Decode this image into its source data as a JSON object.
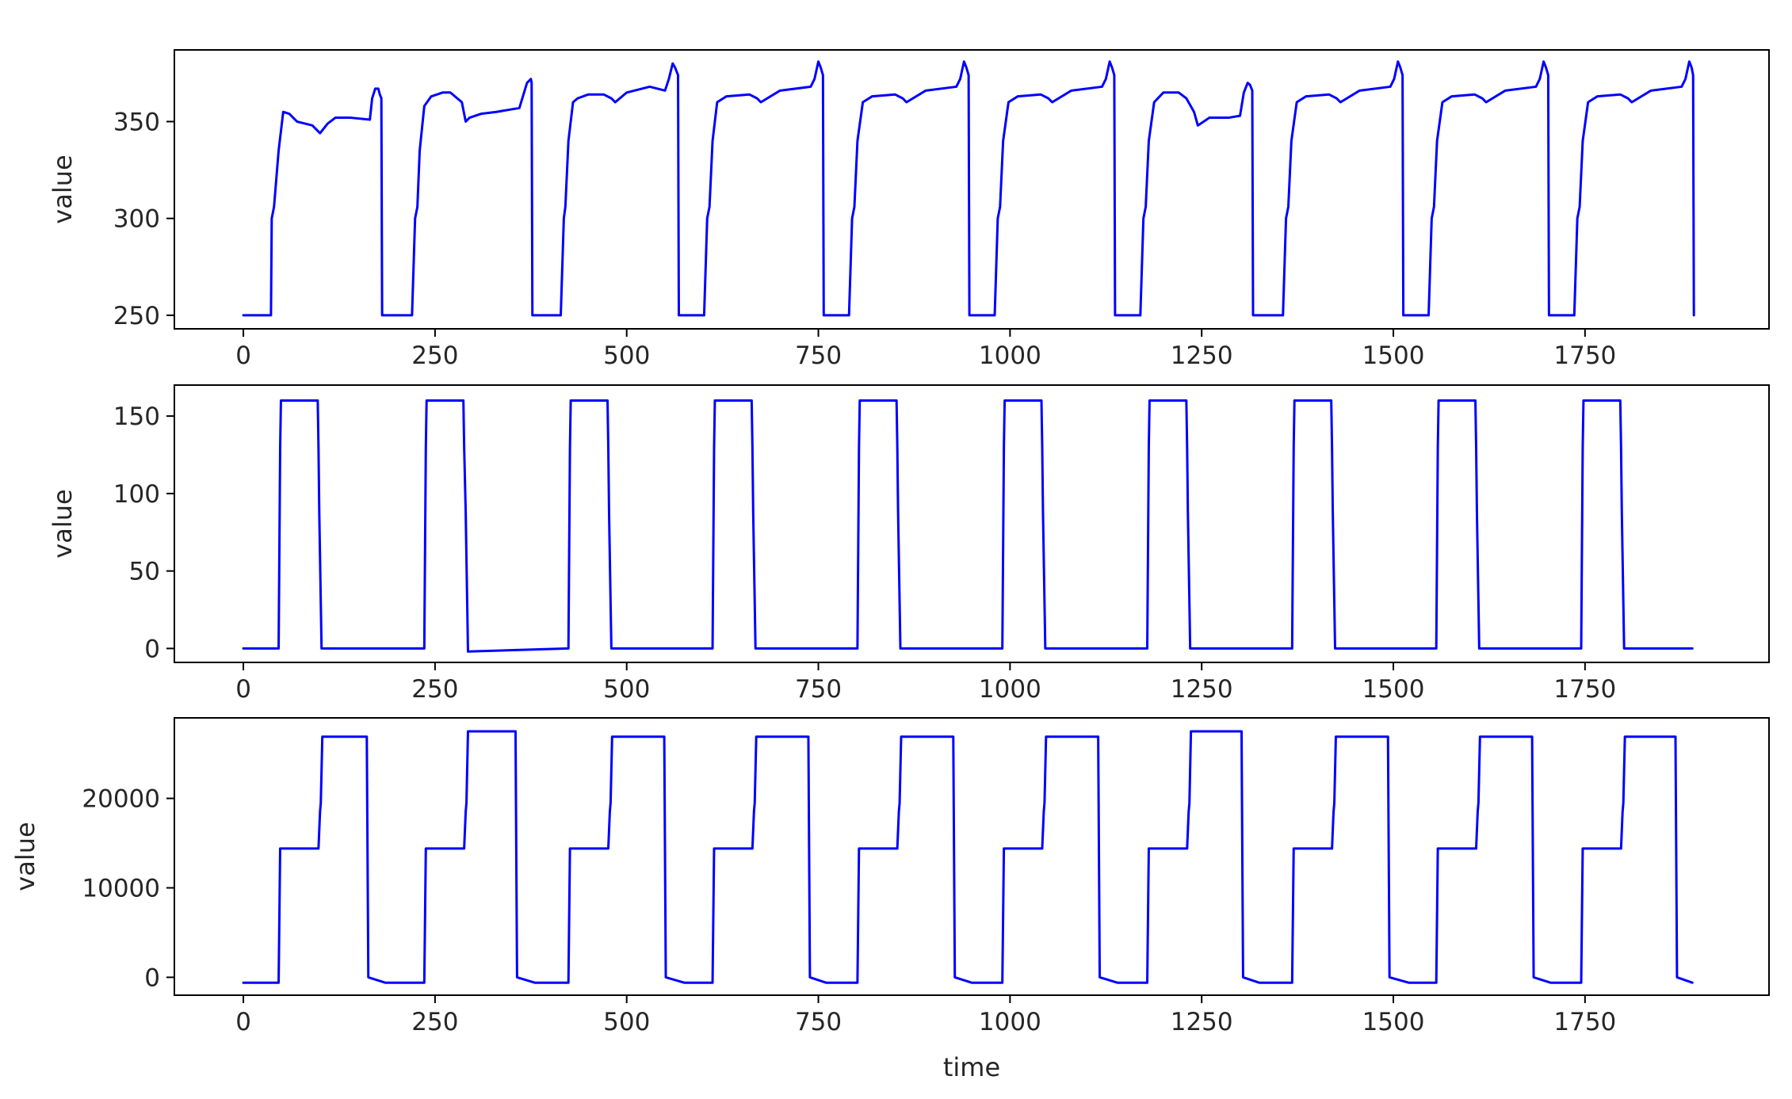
{
  "chart_data": [
    {
      "type": "line",
      "title": "",
      "xlabel": "",
      "ylabel": "value",
      "xlim": [
        -90,
        1990
      ],
      "ylim": [
        243,
        387
      ],
      "xticks": [
        0,
        250,
        500,
        750,
        1000,
        1250,
        1500,
        1750
      ],
      "yticks": [
        250,
        300,
        350
      ],
      "grid": false,
      "color": "#0000ff",
      "series": [
        {
          "x": [
            0,
            36,
            37,
            40,
            46,
            52,
            60,
            70,
            90,
            100,
            110,
            120,
            140,
            165,
            168,
            172,
            176,
            178,
            180,
            181,
            220,
            224,
            227,
            230,
            236,
            245,
            260,
            270,
            285,
            290,
            295,
            310,
            330,
            360,
            370,
            375,
            376,
            377,
            380,
            414,
            418,
            420,
            424,
            430,
            436,
            450,
            470,
            480,
            485,
            500,
            530,
            550,
            555,
            560,
            563,
            567,
            568,
            601,
            605,
            608,
            612,
            618,
            630,
            660,
            670,
            675,
            700,
            740,
            745,
            750,
            753,
            756,
            757,
            790,
            794,
            797,
            801,
            808,
            820,
            850,
            860,
            865,
            890,
            930,
            935,
            940,
            943,
            946,
            947,
            980,
            984,
            987,
            991,
            998,
            1010,
            1040,
            1050,
            1055,
            1080,
            1120,
            1125,
            1130,
            1133,
            1136,
            1137,
            1170,
            1174,
            1177,
            1181,
            1188,
            1200,
            1220,
            1230,
            1240,
            1245,
            1260,
            1285,
            1300,
            1305,
            1310,
            1313,
            1316,
            1317,
            1356,
            1360,
            1363,
            1367,
            1374,
            1386,
            1416,
            1426,
            1431,
            1456,
            1496,
            1501,
            1506,
            1509,
            1512,
            1513,
            1546,
            1550,
            1553,
            1557,
            1564,
            1576,
            1606,
            1616,
            1621,
            1646,
            1686,
            1691,
            1696,
            1699,
            1702,
            1703,
            1736,
            1740,
            1743,
            1747,
            1754,
            1766,
            1796,
            1806,
            1811,
            1836,
            1876,
            1881,
            1886,
            1889,
            1891,
            1892
          ],
          "y": [
            250,
            250,
            300,
            306,
            335,
            355,
            354,
            350,
            348,
            344,
            349,
            352,
            352,
            351,
            362,
            367,
            367,
            364,
            362,
            250,
            250,
            300,
            306,
            335,
            358,
            363,
            365,
            365,
            360,
            350,
            352,
            354,
            355,
            357,
            370,
            372,
            370,
            250,
            250,
            250,
            300,
            306,
            340,
            360,
            362,
            364,
            364,
            362,
            360,
            365,
            368,
            366,
            372,
            380,
            378,
            374,
            250,
            250,
            300,
            306,
            340,
            360,
            363,
            364,
            362,
            360,
            366,
            368,
            372,
            381,
            378,
            374,
            250,
            250,
            300,
            306,
            340,
            360,
            363,
            364,
            362,
            360,
            366,
            368,
            372,
            381,
            378,
            374,
            250,
            250,
            300,
            306,
            340,
            360,
            363,
            364,
            362,
            360,
            366,
            368,
            372,
            381,
            378,
            374,
            250,
            250,
            300,
            306,
            340,
            360,
            365,
            365,
            362,
            355,
            348,
            352,
            352,
            353,
            365,
            370,
            369,
            366,
            250,
            250,
            300,
            306,
            340,
            360,
            363,
            364,
            362,
            360,
            366,
            368,
            372,
            381,
            378,
            374,
            250,
            250,
            300,
            306,
            340,
            360,
            363,
            364,
            362,
            360,
            366,
            368,
            372,
            381,
            378,
            374,
            250,
            250,
            300,
            306,
            340,
            360,
            363,
            364,
            362,
            360,
            366,
            368,
            372,
            381,
            378,
            374,
            250
          ]
        }
      ]
    },
    {
      "type": "line",
      "title": "",
      "xlabel": "",
      "ylabel": "value",
      "xlim": [
        -90,
        1990
      ],
      "ylim": [
        -9,
        170
      ],
      "xticks": [
        0,
        250,
        500,
        750,
        1000,
        1250,
        1500,
        1750
      ],
      "yticks": [
        0,
        50,
        100,
        150
      ],
      "grid": false,
      "color": "#0000ff",
      "series": [
        {
          "x": [
            0,
            46,
            48,
            49,
            97,
            98,
            99,
            102,
            236,
            238,
            239,
            287,
            288,
            290,
            293,
            424,
            426,
            427,
            475,
            476,
            477,
            480,
            612,
            614,
            615,
            663,
            664,
            665,
            668,
            801,
            803,
            804,
            852,
            853,
            854,
            857,
            990,
            992,
            993,
            1041,
            1042,
            1043,
            1046,
            1179,
            1181,
            1182,
            1230,
            1231,
            1232,
            1235,
            1368,
            1370,
            1371,
            1419,
            1420,
            1421,
            1424,
            1556,
            1558,
            1559,
            1607,
            1608,
            1609,
            1612,
            1745,
            1747,
            1748,
            1796,
            1797,
            1798,
            1801,
            1890
          ],
          "y": [
            0,
            0,
            130,
            160,
            160,
            130,
            88,
            0,
            0,
            130,
            160,
            160,
            130,
            88,
            -2,
            0,
            130,
            160,
            160,
            130,
            88,
            0,
            0,
            130,
            160,
            160,
            130,
            88,
            0,
            0,
            130,
            160,
            160,
            130,
            88,
            0,
            0,
            130,
            160,
            160,
            130,
            88,
            0,
            0,
            130,
            160,
            160,
            130,
            88,
            0,
            0,
            130,
            160,
            160,
            130,
            88,
            0,
            0,
            130,
            160,
            160,
            130,
            88,
            0,
            0,
            130,
            160,
            160,
            130,
            88,
            0,
            0
          ]
        }
      ]
    },
    {
      "type": "line",
      "title": "",
      "xlabel": "time",
      "ylabel": "value",
      "xlim": [
        -90,
        1990
      ],
      "ylim": [
        -2000,
        29000
      ],
      "xticks": [
        0,
        250,
        500,
        750,
        1000,
        1250,
        1500,
        1750
      ],
      "yticks": [
        0,
        10000,
        20000
      ],
      "grid": false,
      "color": "#0000ff",
      "series": [
        {
          "x": [
            0,
            46,
            48,
            98,
            100,
            101,
            103,
            161,
            163,
            185,
            195,
            236,
            238,
            288,
            290,
            291,
            293,
            355,
            357,
            380,
            385,
            424,
            426,
            476,
            478,
            479,
            481,
            549,
            551,
            575,
            580,
            612,
            614,
            664,
            666,
            667,
            669,
            737,
            739,
            760,
            765,
            801,
            803,
            853,
            855,
            856,
            858,
            926,
            928,
            950,
            955,
            990,
            992,
            1042,
            1044,
            1045,
            1047,
            1115,
            1117,
            1140,
            1145,
            1179,
            1181,
            1231,
            1233,
            1234,
            1236,
            1302,
            1304,
            1325,
            1330,
            1368,
            1370,
            1420,
            1422,
            1423,
            1425,
            1493,
            1495,
            1520,
            1525,
            1556,
            1558,
            1608,
            1610,
            1611,
            1613,
            1681,
            1683,
            1705,
            1710,
            1745,
            1747,
            1797,
            1799,
            1800,
            1802,
            1868,
            1870,
            1890
          ],
          "y": [
            -600,
            -600,
            14400,
            14400,
            18500,
            19500,
            26900,
            26900,
            0,
            -600,
            -600,
            -600,
            14400,
            14400,
            18500,
            19500,
            27500,
            27500,
            0,
            -600,
            -600,
            -600,
            14400,
            14400,
            18500,
            19500,
            26900,
            26900,
            0,
            -600,
            -600,
            -600,
            14400,
            14400,
            18500,
            19500,
            26900,
            26900,
            0,
            -600,
            -600,
            -600,
            14400,
            14400,
            18500,
            19500,
            26900,
            26900,
            0,
            -600,
            -600,
            -600,
            14400,
            14400,
            18500,
            19500,
            26900,
            26900,
            0,
            -600,
            -600,
            -600,
            14400,
            14400,
            18500,
            19500,
            27500,
            27500,
            0,
            -600,
            -600,
            -600,
            14400,
            14400,
            18500,
            19500,
            26900,
            26900,
            0,
            -600,
            -600,
            -600,
            14400,
            14400,
            18500,
            19500,
            26900,
            26900,
            0,
            -600,
            -600,
            -600,
            14400,
            14400,
            18500,
            19500,
            26900,
            26900,
            0,
            -600
          ]
        }
      ]
    }
  ]
}
